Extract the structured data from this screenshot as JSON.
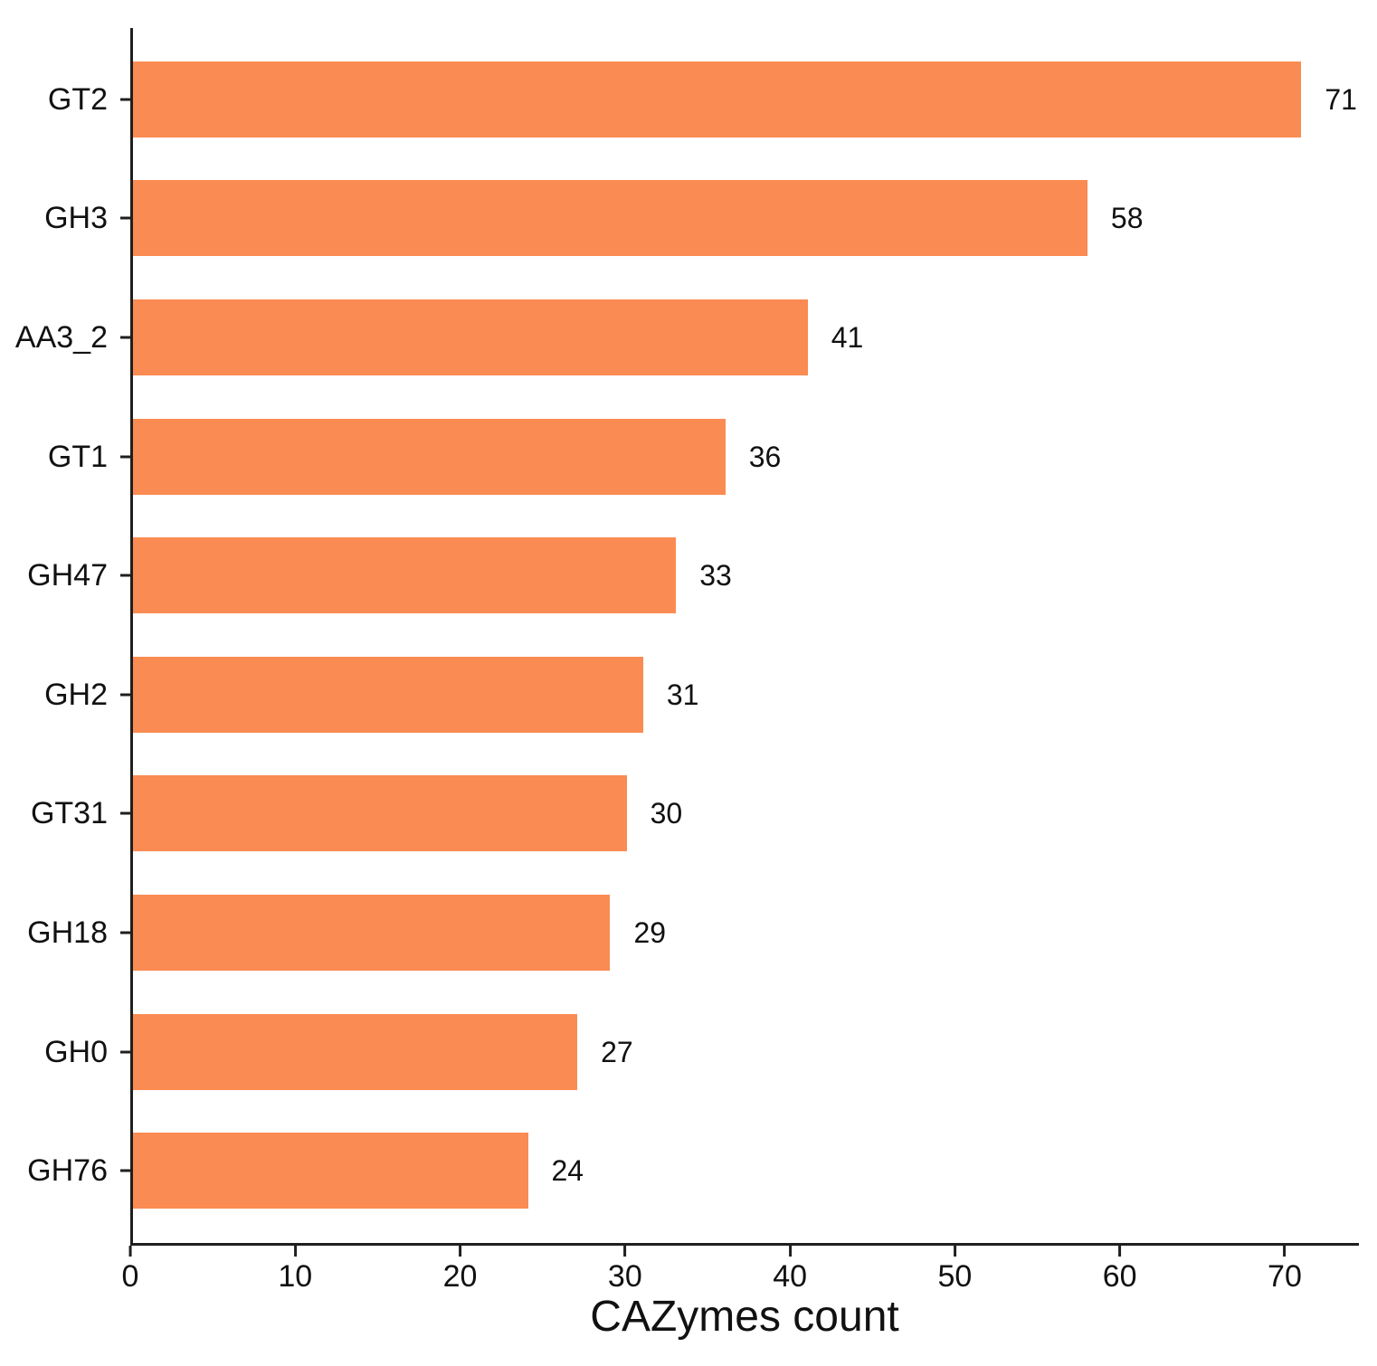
{
  "chart_data": {
    "type": "bar",
    "orientation": "horizontal",
    "title": "",
    "xlabel": "CAZymes count",
    "ylabel": "",
    "categories": [
      "GT2",
      "GH3",
      "AA3_2",
      "GT1",
      "GH47",
      "GH2",
      "GT31",
      "GH18",
      "GH0",
      "GH76"
    ],
    "values": [
      71,
      58,
      41,
      36,
      33,
      31,
      30,
      29,
      27,
      24
    ],
    "value_labels_shown": true,
    "xticks": [
      0,
      10,
      20,
      30,
      40,
      50,
      60,
      70
    ],
    "xlim": [
      0,
      74.5
    ],
    "grid": false,
    "legend_position": "none",
    "bar_color": "#FA8B52",
    "axis_color": "#1f1f1f",
    "text_color": "#111111"
  }
}
